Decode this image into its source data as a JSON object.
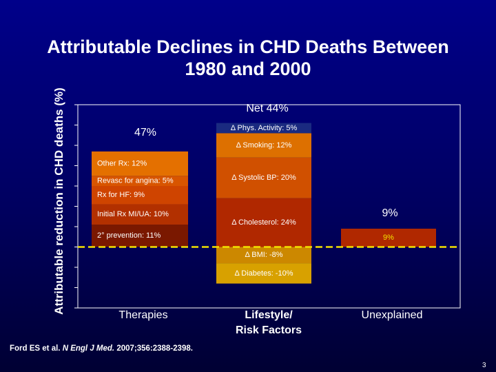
{
  "slide": {
    "title_line1": "Attributable Declines in CHD Deaths Between",
    "title_line2": "1980 and 2000",
    "citation_authors": "Ford ES et al.",
    "citation_journal": "N Engl J Med.",
    "citation_rest": "2007;356:2388-2398.",
    "page_number": "3"
  },
  "chart_data": {
    "type": "bar",
    "stacked": true,
    "ylabel": "Attributable reduction in CHD deaths (%)",
    "ylim": [
      -30,
      70
    ],
    "grid": false,
    "baseline": 0,
    "categories": [
      "Therapies",
      "Lifestyle/\nRisk Factors",
      "Unexplained"
    ],
    "category_lines": [
      [
        "Therapies"
      ],
      [
        "Lifestyle/",
        "Risk Factors"
      ],
      [
        "Unexplained"
      ]
    ],
    "totals": [
      {
        "category": "Therapies",
        "label": "47%"
      },
      {
        "category": "Lifestyle/\nRisk Factors",
        "label": "Net 44%"
      },
      {
        "category": "Unexplained",
        "label": "9%"
      }
    ],
    "stacks": [
      {
        "category": "Therapies",
        "segments": [
          {
            "label": "2° prevention: 11%",
            "value": 11,
            "color": "#7a1800"
          },
          {
            "label": "Initial Rx MI/UA: 10%",
            "value": 10,
            "color": "#b23000"
          },
          {
            "label": "Rx for HF: 9%",
            "value": 9,
            "color": "#cf4400"
          },
          {
            "label": "Revasc for angina: 5%",
            "value": 5,
            "color": "#d85500"
          },
          {
            "label": "Other Rx: 12%",
            "value": 12,
            "color": "#e47000"
          }
        ]
      },
      {
        "category": "Lifestyle/\nRisk Factors",
        "segments": [
          {
            "label": "Δ Cholesterol: 24%",
            "value": 24,
            "color": "#b02800"
          },
          {
            "label": "Δ Systolic BP: 20%",
            "value": 20,
            "color": "#d05000"
          },
          {
            "label": "Δ Smoking: 12%",
            "value": 12,
            "color": "#dd7000"
          },
          {
            "label": "Δ Phys. Activity: 5%",
            "value": 5,
            "color": "#1a2a80"
          },
          {
            "label": "Δ BMI: -8%",
            "value": -8,
            "color": "#cc8800"
          },
          {
            "label": "Δ Diabetes: -10%",
            "value": -10,
            "color": "#d8a100"
          }
        ]
      },
      {
        "category": "Unexplained",
        "segments": [
          {
            "label": "9%",
            "value": 9,
            "color": "#b02800"
          }
        ]
      }
    ],
    "colors": {
      "axis": "#ffffff",
      "baseline_dash": "#f2e200",
      "label_text": "#ffffff",
      "unexplained_label": "#f2e200"
    }
  }
}
